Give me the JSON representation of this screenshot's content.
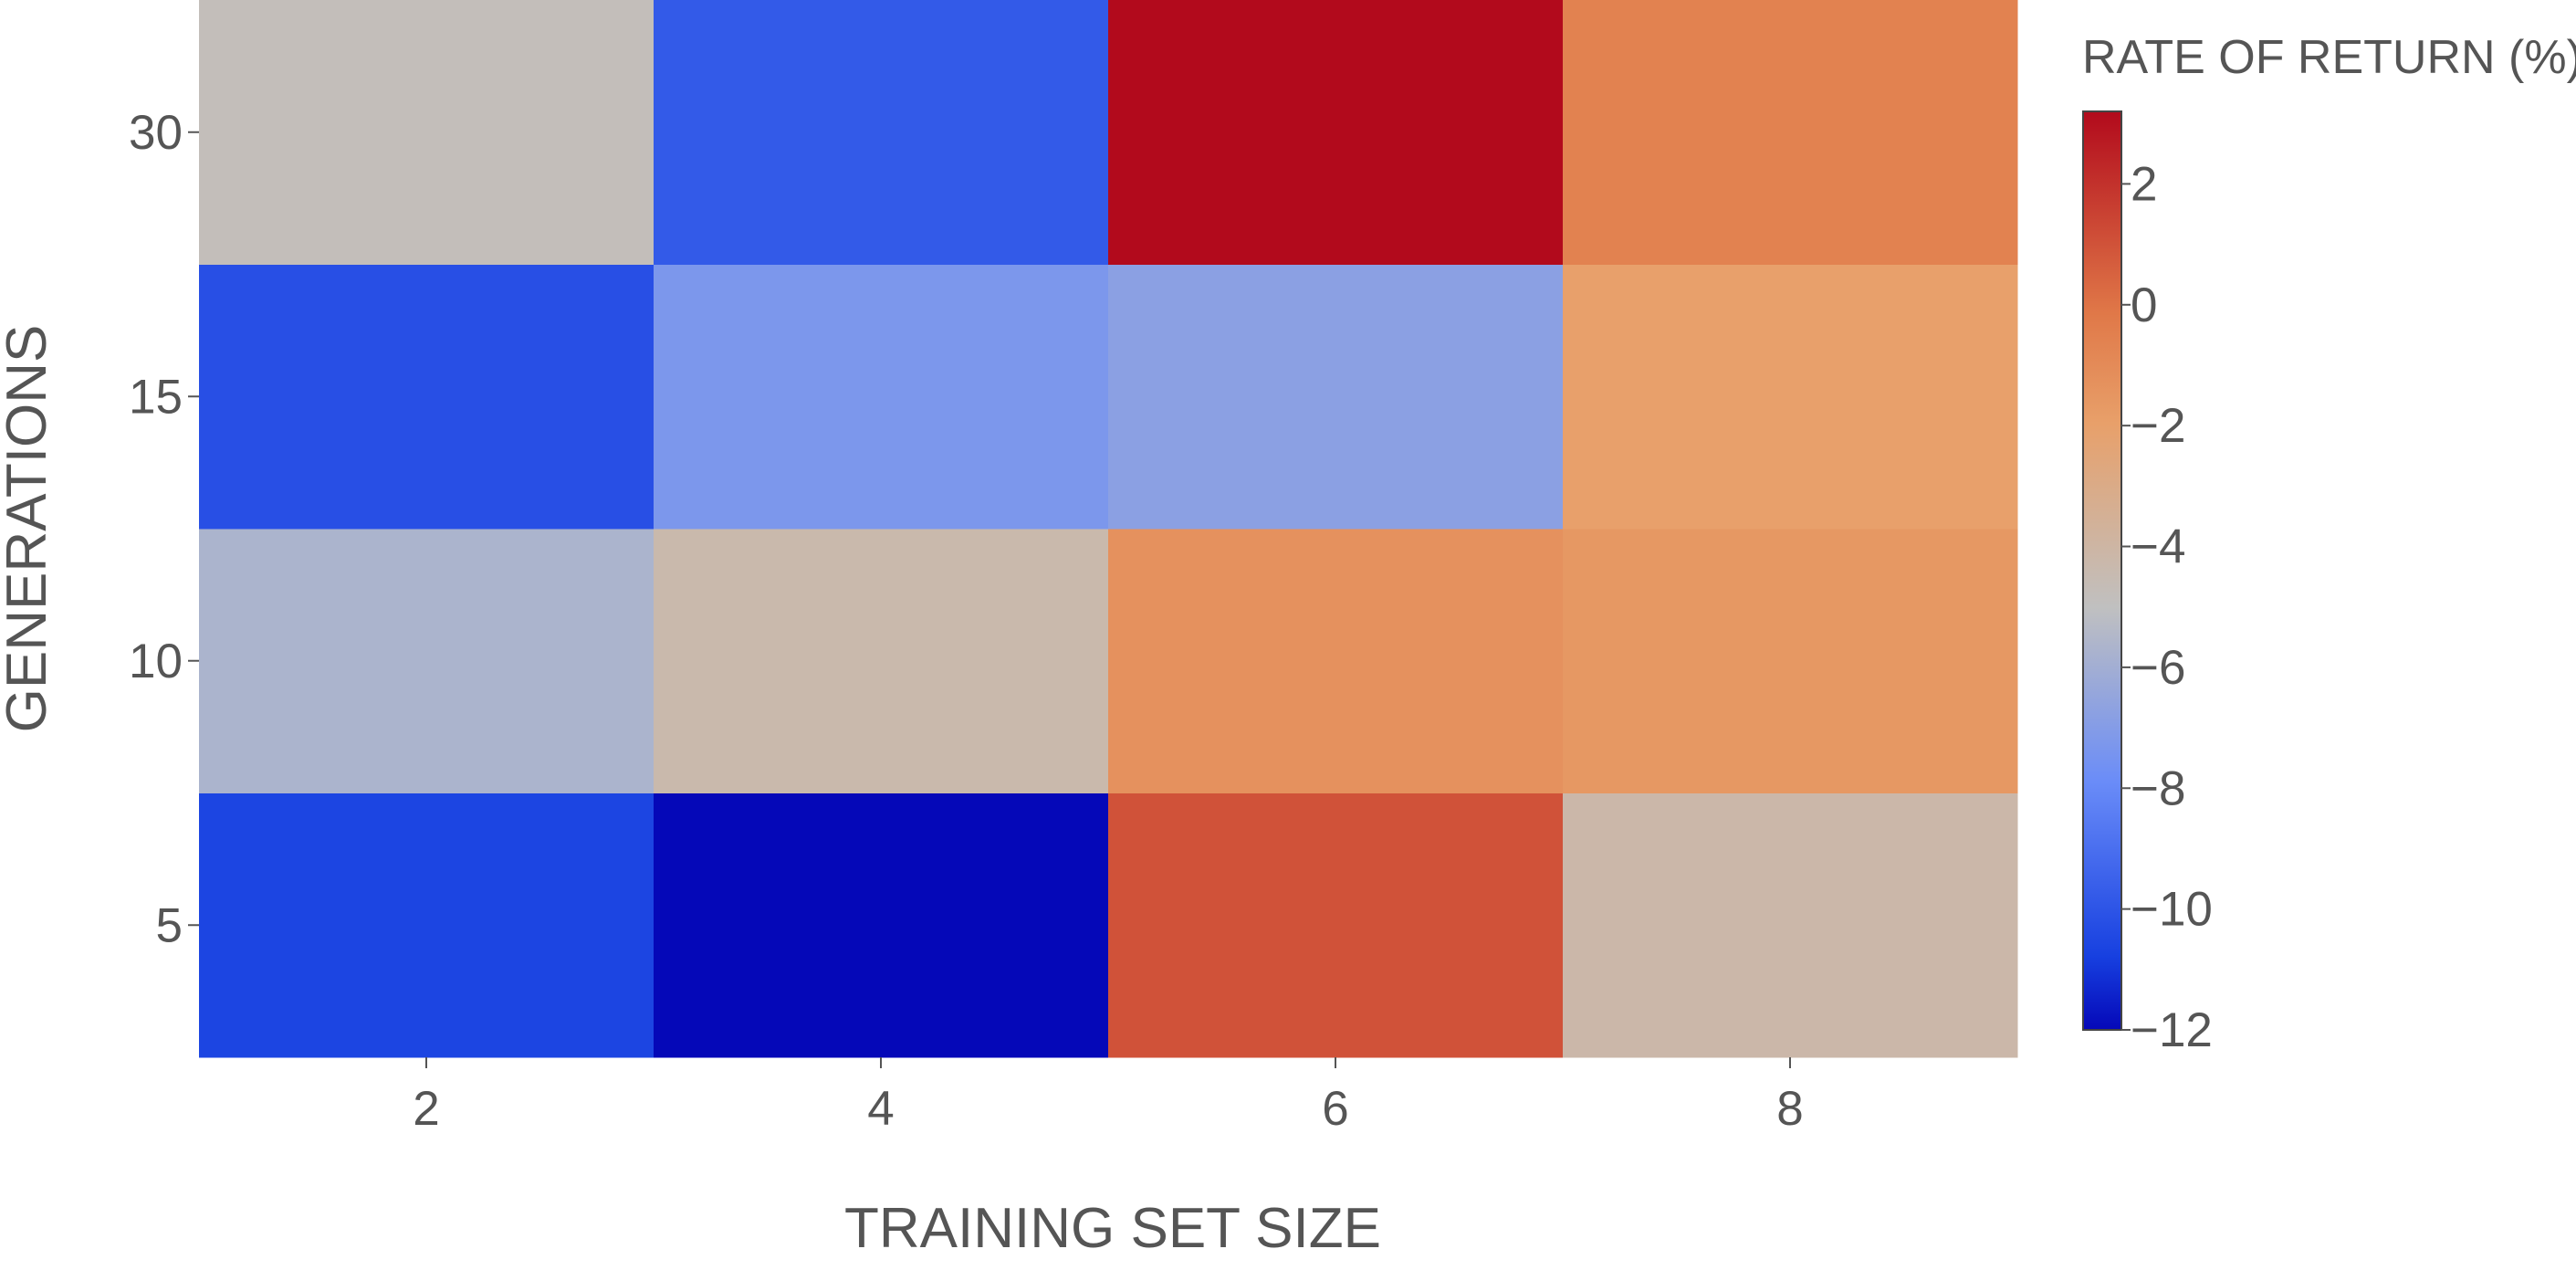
{
  "chart_data": {
    "type": "heatmap",
    "x": [
      2,
      4,
      6,
      8
    ],
    "y": [
      5,
      10,
      15,
      30
    ],
    "z": [
      [
        -10.6,
        -12.0,
        1.0,
        -4.2
      ],
      [
        -5.7,
        -4.3,
        -1.3,
        -1.6
      ],
      [
        -10.2,
        -7.3,
        -6.8,
        -2.0
      ],
      [
        -4.8,
        -9.8,
        3.2,
        -0.6
      ]
    ],
    "zlim": [
      -12,
      3.2
    ],
    "xlabel": "TRAINING SET SIZE",
    "ylabel": "GENERATIONS",
    "colorbar": {
      "title": "RATE OF RETURN (%)",
      "ticks": [
        2,
        0,
        -2,
        -4,
        -6,
        -8,
        -10,
        -12
      ],
      "tick_labels": [
        "2",
        "0",
        "−2",
        "−4",
        "−6",
        "−8",
        "−10",
        "−12"
      ]
    },
    "x_tick_labels": [
      "2",
      "4",
      "6",
      "8"
    ],
    "y_tick_labels": [
      "5",
      "10",
      "15",
      "30"
    ],
    "colorscale": [
      "#0508b8",
      "#1740e0",
      "#6a8cf8",
      "#c0c0c0",
      "#e8a06a",
      "#e07848",
      "#b20a1c"
    ]
  }
}
